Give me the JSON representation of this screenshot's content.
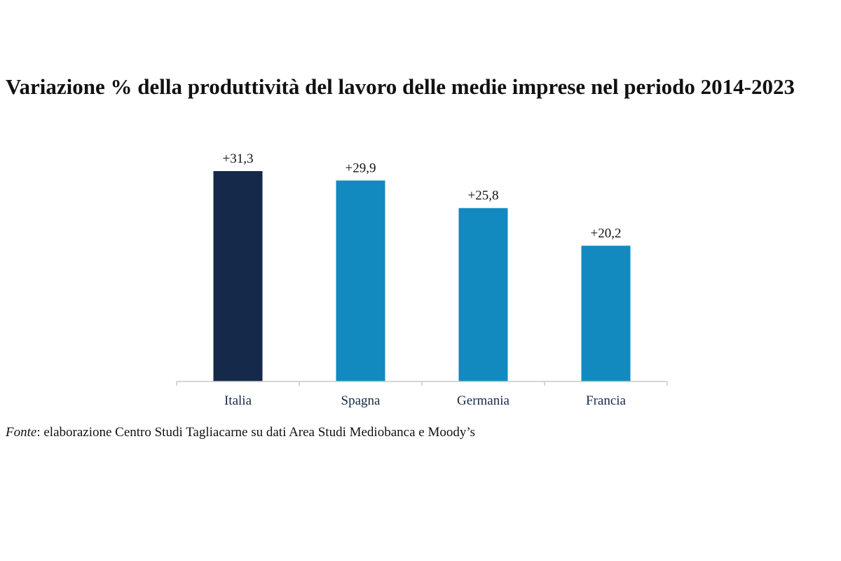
{
  "chart_data": {
    "type": "bar",
    "title": "Variazione % della produttività del lavoro delle medie imprese nel periodo 2014-2023",
    "categories": [
      "Italia",
      "Spagna",
      "Germania",
      "Francia"
    ],
    "values": [
      31.3,
      29.9,
      25.8,
      20.2
    ],
    "data_labels": [
      "+31,3",
      "+29,9",
      "+25,8",
      "+20,2"
    ],
    "xlabel": "",
    "ylabel": "",
    "ylim": [
      0,
      31.3
    ],
    "grid": false,
    "legend": "none",
    "colors": [
      "#15294a",
      "#128abf",
      "#128abf",
      "#128abf"
    ]
  },
  "source": {
    "label": "Fonte",
    "text": ": elaborazione Centro Studi Tagliacarne su dati Area Studi Mediobanca e Moody’s"
  }
}
